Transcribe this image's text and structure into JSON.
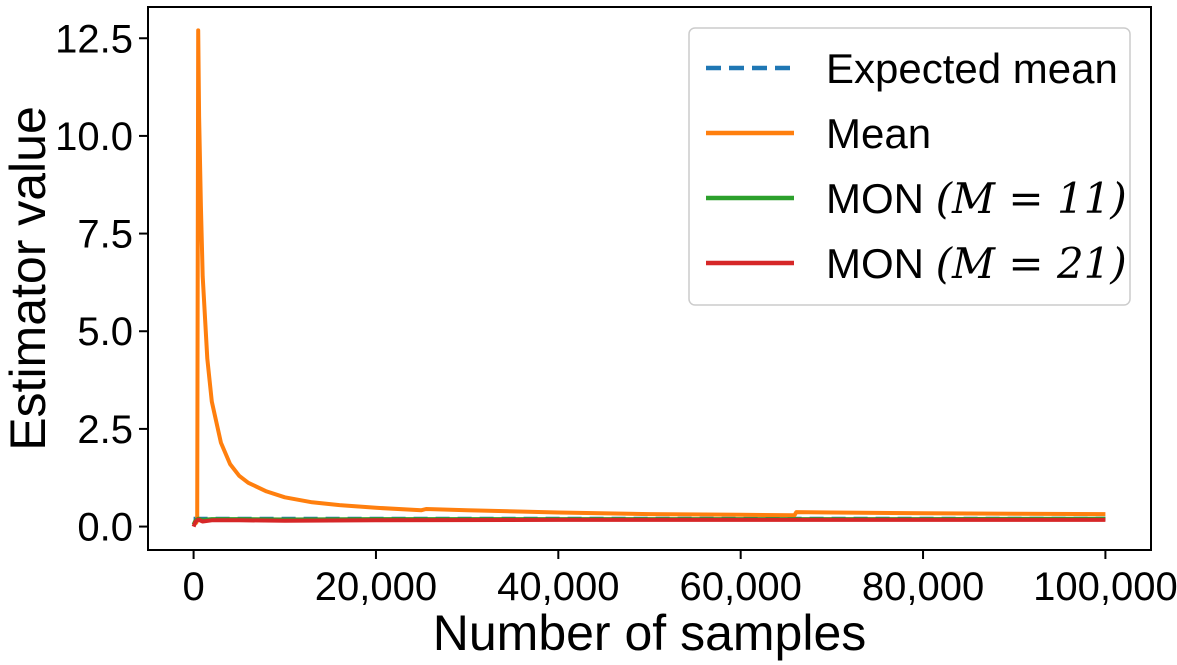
{
  "chart_data": {
    "type": "line",
    "xlabel": "Number of samples",
    "ylabel": "Estimator value",
    "xlim": [
      -5000,
      105000
    ],
    "ylim": [
      -0.6,
      13.3
    ],
    "xticks": [
      0,
      20000,
      40000,
      60000,
      80000,
      100000
    ],
    "xtick_labels": [
      "0",
      "20,000",
      "40,000",
      "60,000",
      "80,000",
      "100,000"
    ],
    "yticks": [
      0.0,
      2.5,
      5.0,
      7.5,
      10.0,
      12.5
    ],
    "ytick_labels": [
      "0.0",
      "2.5",
      "5.0",
      "7.5",
      "10.0",
      "12.5"
    ],
    "grid": false,
    "legend_position": "top-right",
    "series": [
      {
        "name": "Expected mean",
        "style": "dashed",
        "color": "#1f77b4",
        "x": [
          0,
          100000
        ],
        "y": [
          0.2,
          0.2
        ]
      },
      {
        "name": "Mean",
        "style": "solid",
        "color": "#ff7f0e",
        "x": [
          0,
          300,
          400,
          500,
          600,
          800,
          1000,
          1500,
          2000,
          3000,
          4000,
          5000,
          6000,
          8000,
          10000,
          13000,
          16000,
          20000,
          25000,
          25500,
          30000,
          40000,
          50000,
          60000,
          65900,
          66100,
          70000,
          80000,
          90000,
          100000
        ],
        "y": [
          0.05,
          0.1,
          0.15,
          12.7,
          10.5,
          8.2,
          6.4,
          4.3,
          3.2,
          2.15,
          1.6,
          1.3,
          1.12,
          0.9,
          0.75,
          0.62,
          0.55,
          0.48,
          0.42,
          0.45,
          0.42,
          0.36,
          0.32,
          0.3,
          0.29,
          0.37,
          0.36,
          0.34,
          0.33,
          0.32
        ]
      },
      {
        "name": "MON (M = 11)",
        "style": "solid",
        "color": "#2ca02c",
        "x": [
          0,
          200,
          500,
          1000,
          2000,
          5000,
          10000,
          20000,
          40000,
          60000,
          80000,
          100000
        ],
        "y": [
          0.05,
          0.15,
          0.2,
          0.17,
          0.19,
          0.19,
          0.18,
          0.19,
          0.19,
          0.19,
          0.19,
          0.2
        ]
      },
      {
        "name": "MON (M = 21)",
        "style": "solid",
        "color": "#d62728",
        "x": [
          0,
          200,
          500,
          1000,
          2000,
          5000,
          10000,
          20000,
          40000,
          60000,
          80000,
          100000
        ],
        "y": [
          0.0,
          0.12,
          0.18,
          0.13,
          0.16,
          0.16,
          0.15,
          0.16,
          0.17,
          0.17,
          0.17,
          0.17
        ]
      }
    ],
    "legend": [
      {
        "text": "Expected mean",
        "math": ""
      },
      {
        "text": "Mean",
        "math": ""
      },
      {
        "text": "MON ",
        "math": "(M = 11)"
      },
      {
        "text": "MON ",
        "math": "(M = 21)"
      }
    ]
  }
}
